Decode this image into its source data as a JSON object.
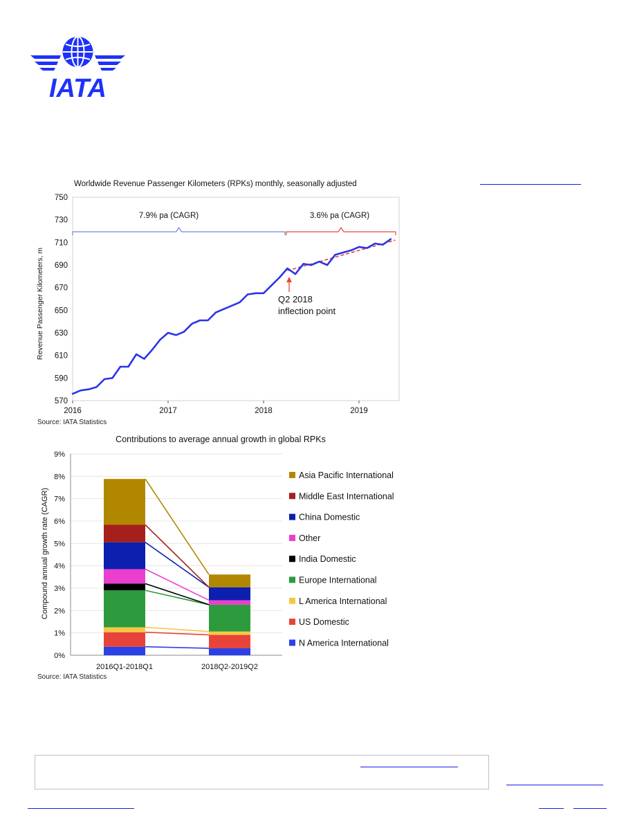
{
  "logo": {
    "text": "IATA",
    "color": "#1e32fa"
  },
  "chart_data": [
    {
      "type": "line",
      "title": "Worldwide Revenue Passenger Kilometers (RPKs) monthly, seasonally adjusted",
      "ylabel": "Revenue Passenger Kilometers, m",
      "xlabel": "",
      "ylim": [
        570,
        750
      ],
      "yticks": [
        570,
        590,
        610,
        630,
        650,
        670,
        690,
        710,
        730,
        750
      ],
      "xticks": [
        {
          "label": "2016",
          "value": 2016.0
        },
        {
          "label": "2017",
          "value": 2017.0
        },
        {
          "label": "2018",
          "value": 2018.0
        },
        {
          "label": "2019",
          "value": 2019.0
        }
      ],
      "xlim": [
        2016.0,
        2019.42
      ],
      "series": [
        {
          "color": "#2a34e8",
          "x": [
            2016.0,
            2016.083,
            2016.167,
            2016.25,
            2016.333,
            2016.417,
            2016.5,
            2016.583,
            2016.667,
            2016.75,
            2016.833,
            2016.917,
            2017.0,
            2017.083,
            2017.167,
            2017.25,
            2017.333,
            2017.417,
            2017.5,
            2017.583,
            2017.667,
            2017.75,
            2017.833,
            2017.917,
            2018.0,
            2018.083,
            2018.167,
            2018.25,
            2018.333,
            2018.417,
            2018.5,
            2018.583,
            2018.667,
            2018.75,
            2018.833,
            2018.917,
            2019.0,
            2019.083,
            2019.167,
            2019.25,
            2019.333
          ],
          "y": [
            576,
            579,
            580,
            582,
            589,
            590,
            600,
            600,
            611,
            607,
            615,
            624,
            630,
            628,
            631,
            638,
            641,
            641,
            648,
            651,
            654,
            657,
            664,
            665,
            665,
            672,
            679,
            687,
            682,
            691,
            690,
            693,
            690,
            699,
            701,
            703,
            706,
            705,
            709,
            708,
            713
          ]
        }
      ],
      "trend": {
        "color": "#e8433a",
        "x": [
          2018.25,
          2019.38
        ],
        "y": [
          685,
          712
        ]
      },
      "annotations": {
        "brace_left_label": "7.9% pa (CAGR)",
        "brace_left_color": "#6f86d6",
        "brace_right_label": "3.6% pa (CAGR)",
        "brace_right_color": "#e8433a",
        "inflection_line1": "Q2 2018",
        "inflection_line2": "inflection point",
        "inflection_color": "#e8433a"
      },
      "source": "Source: IATA Statistics"
    },
    {
      "type": "bar",
      "stacked": true,
      "title": "Contributions to average annual growth in global RPKs",
      "ylabel": "Compound annual growth rate (CAGR)",
      "xlabel": "",
      "ylim": [
        0,
        9
      ],
      "yticks": [
        "0%",
        "1%",
        "2%",
        "3%",
        "4%",
        "5%",
        "6%",
        "7%",
        "8%",
        "9%"
      ],
      "categories": [
        "2016Q1-2018Q1",
        "2018Q2-2019Q2"
      ],
      "series": [
        {
          "name": "N America International",
          "color": "#2a41e8",
          "values": [
            0.38,
            0.31
          ]
        },
        {
          "name": "US Domestic",
          "color": "#e8433a",
          "values": [
            0.65,
            0.6
          ]
        },
        {
          "name": "L America International",
          "color": "#f5c842",
          "values": [
            0.22,
            0.15
          ]
        },
        {
          "name": "Europe International",
          "color": "#2e9a3e",
          "values": [
            1.65,
            1.2
          ]
        },
        {
          "name": "India Domestic",
          "color": "#000000",
          "values": [
            0.3,
            0.0
          ]
        },
        {
          "name": "Other",
          "color": "#ea3fce",
          "values": [
            0.65,
            0.2
          ]
        },
        {
          "name": "China Domestic",
          "color": "#0c1fae",
          "values": [
            1.2,
            0.58
          ]
        },
        {
          "name": "Middle East International",
          "color": "#a51f1c",
          "values": [
            0.78,
            0.0
          ]
        },
        {
          "name": "Asia Pacific International",
          "color": "#b28700",
          "values": [
            2.05,
            0.57
          ]
        }
      ],
      "source": "Source: IATA Statistics"
    }
  ]
}
